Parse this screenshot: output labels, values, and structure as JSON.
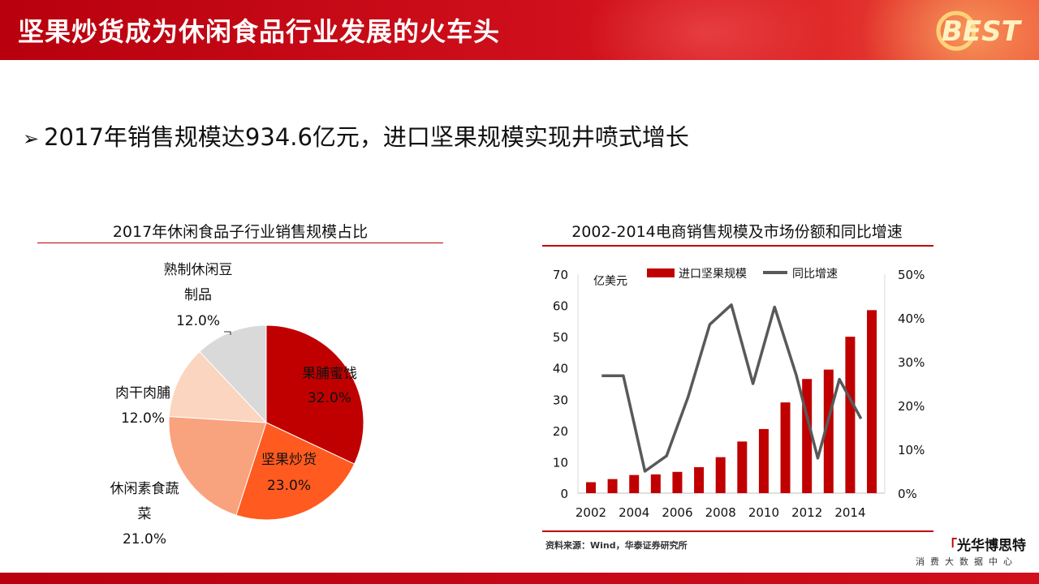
{
  "header": {
    "title": "坚果炒货成为休闲食品行业发展的火车头",
    "logo_text": "BEST"
  },
  "headline": {
    "marker": "➢",
    "text": "2017年销售规模达934.6亿元，进口坚果规模实现井喷式增长"
  },
  "chart_data": [
    {
      "type": "pie",
      "title": "2017年休闲食品子行业销售规模占比",
      "slices": [
        {
          "label": "果脯蜜饯",
          "value": 32.0,
          "value_label": "32.0%",
          "color": "#c00000"
        },
        {
          "label": "坚果炒货",
          "value": 23.0,
          "value_label": "23.0%",
          "color": "#ff5a1f"
        },
        {
          "label": "休闲素食蔬菜",
          "label_lines": [
            "休闲素食蔬",
            "菜"
          ],
          "value": 21.0,
          "value_label": "21.0%",
          "color": "#f9a27e"
        },
        {
          "label": "肉干肉脯",
          "value": 12.0,
          "value_label": "12.0%",
          "color": "#fbd5c0"
        },
        {
          "label": "熟制休闲豆制品",
          "label_lines": [
            "熟制休闲豆",
            "制品"
          ],
          "value": 12.0,
          "value_label": "12.0%",
          "color": "#d9d9d9"
        }
      ]
    },
    {
      "type": "bar",
      "title": "2002-2014电商销售规模及市场份额和同比增速",
      "ylabel": "亿美元",
      "ylim": [
        0,
        70
      ],
      "y2lim": [
        0,
        50
      ],
      "y_ticks": [
        "0",
        "10",
        "20",
        "30",
        "40",
        "50",
        "60",
        "70"
      ],
      "y2_ticks": [
        "0%",
        "10%",
        "20%",
        "30%",
        "40%",
        "50%"
      ],
      "x_ticks": [
        "2002",
        "2004",
        "2006",
        "2008",
        "2010",
        "2012",
        "2014"
      ],
      "legend": [
        "进口坚果规模",
        "同比增速"
      ],
      "legend_position": "top",
      "x": [
        2002,
        2003,
        2004,
        2005,
        2006,
        2007,
        2008,
        2009,
        2010,
        2011,
        2012,
        2013,
        2014,
        2015
      ],
      "series": [
        {
          "name": "进口坚果规模",
          "kind": "bar",
          "color": "#c00000",
          "values": [
            3.5,
            4.5,
            5.8,
            6.0,
            6.8,
            8.3,
            11.5,
            16.5,
            20.5,
            29.0,
            36.5,
            39.5,
            50.0,
            58.5
          ]
        },
        {
          "name": "同比增速",
          "kind": "line",
          "axis": "right",
          "color": "#595959",
          "values": [
            null,
            26.8,
            26.8,
            5.0,
            8.5,
            22.0,
            38.5,
            43.0,
            25.0,
            42.5,
            27.0,
            8.0,
            26.0,
            17.0
          ]
        }
      ]
    }
  ],
  "footer": {
    "source": "资料来源：Wind，华泰证券研究所",
    "brand": "光华博思特",
    "brand_sub": "消费大数据中心"
  }
}
